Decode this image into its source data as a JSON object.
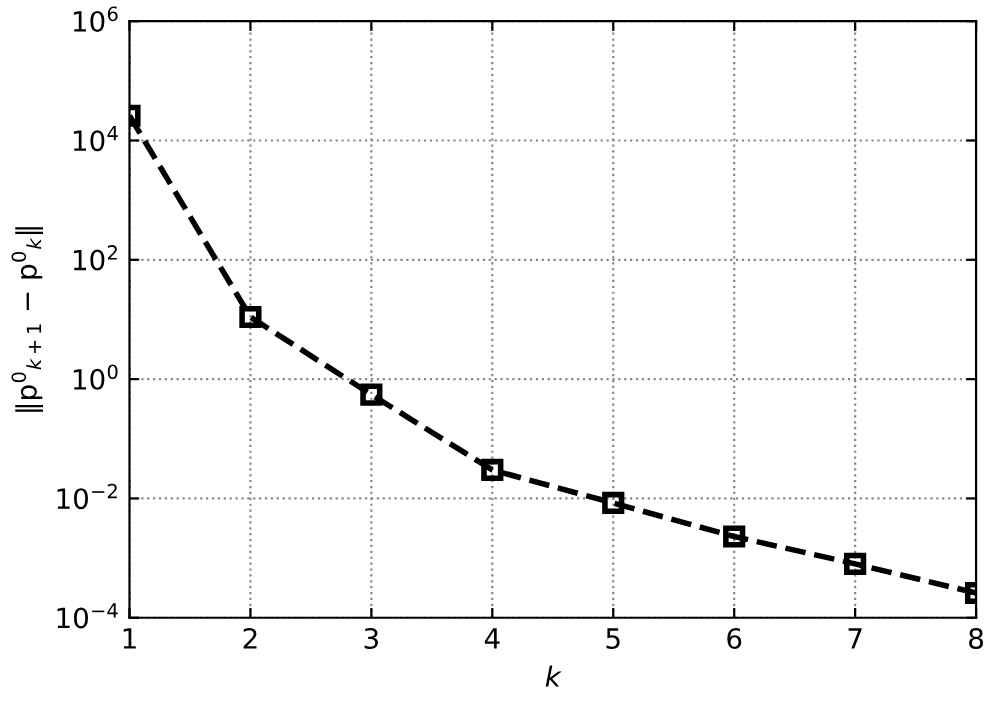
{
  "chart_data": {
    "type": "line",
    "xlabel": "k",
    "ylabel": "‖p$^{0}$$_{k+1}$ − p$^{0}$$_{k}$‖",
    "x": [
      1,
      2,
      3,
      4,
      5,
      6,
      7,
      8
    ],
    "series": [
      {
        "color": "#000000",
        "values": [
          26000,
          11,
          0.55,
          0.03,
          0.0084,
          0.0023,
          0.0008,
          0.00026
        ]
      }
    ],
    "log": "y",
    "xlim": [
      1,
      8
    ],
    "ylim": [
      0.0001,
      1000000
    ],
    "xticks": [
      1,
      2,
      3,
      4,
      5,
      6,
      7,
      8
    ],
    "yticks": [
      {
        "value": 0.0001,
        "label": "10$^{−4}$"
      },
      {
        "value": 0.01,
        "label": "10$^{−2}$"
      },
      {
        "value": 1,
        "label": "10$^{0}$"
      },
      {
        "value": 100,
        "label": "10$^{2}$"
      },
      {
        "value": 10000,
        "label": "10$^{4}$"
      },
      {
        "value": 1000000,
        "label": "10$^{6}$"
      }
    ],
    "grid": true,
    "marker": "square",
    "line_style": "dashed"
  }
}
